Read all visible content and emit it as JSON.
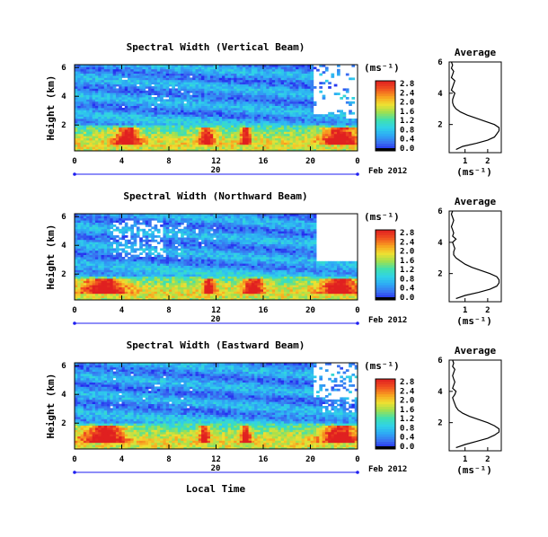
{
  "colorbar_unit": "(ms⁻¹)",
  "y_label": "Height (km)",
  "x_ticks": [
    "0",
    "4",
    "8",
    "12",
    "16",
    "20",
    "0"
  ],
  "y_ticks": [
    "6",
    "4",
    "2"
  ],
  "date_label": "Feb 2012",
  "day_label": "20",
  "x_axis_title": "Local Time",
  "average_title": "Average",
  "average_xticks": [
    "1",
    "2"
  ],
  "average_yticks": [
    "6",
    "4",
    "2"
  ],
  "average_xlabel": "(ms⁻¹)",
  "colors": {
    "scale": [
      "#000000",
      "#1e1ef0",
      "#3a6cf0",
      "#2ea8f5",
      "#30d2e8",
      "#40e0b0",
      "#a0e050",
      "#f0e030",
      "#f8a020",
      "#f05020",
      "#e02020"
    ],
    "missing": "#ffffff"
  },
  "chart_data": [
    {
      "type": "heatmap",
      "title": "Spectral Width (Vertical Beam)",
      "x_range": [
        0,
        24
      ],
      "y_range": [
        0.2,
        6.2
      ],
      "colorbar": {
        "min": 0.0,
        "max": 2.8,
        "ticks": [
          "2.8",
          "2.4",
          "2.0",
          "1.6",
          "1.2",
          "0.8",
          "0.4",
          "0.0"
        ]
      },
      "grid_desc": "Low layer (0.2-2 km) broadband widths 1.2-2.8 with red patches near 3-6 h, 10-12 h, 14-15 h and after 21 h; mid/upper layer 0.2-1.2 with missing data above 3 km after 20 h",
      "average_profile": {
        "height_km": [
          0.4,
          0.6,
          0.8,
          1.0,
          1.2,
          1.4,
          1.6,
          1.8,
          2.0,
          2.2,
          2.4,
          2.6,
          2.8,
          3.0,
          3.2,
          3.4,
          3.6,
          3.8,
          4.0,
          4.2,
          4.4,
          4.6,
          4.8,
          5.0,
          5.2,
          5.4,
          5.6,
          5.8,
          6.0
        ],
        "width": [
          0.6,
          0.9,
          1.5,
          2.0,
          2.3,
          2.4,
          2.5,
          2.5,
          2.3,
          1.9,
          1.5,
          1.1,
          0.8,
          0.6,
          0.5,
          0.45,
          0.45,
          0.5,
          0.55,
          0.4,
          0.45,
          0.5,
          0.55,
          0.4,
          0.45,
          0.5,
          0.4,
          0.45,
          0.4
        ]
      }
    },
    {
      "type": "heatmap",
      "title": "Spectral Width (Northward Beam)",
      "x_range": [
        0,
        24
      ],
      "y_range": [
        0.2,
        6.2
      ],
      "colorbar": {
        "min": 0.0,
        "max": 2.8,
        "ticks": [
          "2.8",
          "2.4",
          "2.0",
          "1.6",
          "1.2",
          "0.8",
          "0.4",
          "0.0"
        ]
      },
      "grid_desc": "Low layer up to ~1.8 km with red near 0-7 h, 11-12 h, 14-16 h and after 20 h; missing data above 3 km near 3-8 h and above 3.2 km after 20 h",
      "average_profile": {
        "height_km": [
          0.4,
          0.6,
          0.8,
          1.0,
          1.2,
          1.4,
          1.6,
          1.8,
          2.0,
          2.2,
          2.4,
          2.6,
          2.8,
          3.0,
          3.2,
          3.4,
          3.6,
          3.8,
          4.0,
          4.2,
          4.4,
          4.6,
          4.8,
          5.0,
          5.2,
          5.4,
          5.6,
          5.8,
          6.0
        ],
        "width": [
          0.6,
          1.0,
          1.6,
          2.1,
          2.4,
          2.5,
          2.5,
          2.4,
          2.1,
          1.7,
          1.3,
          1.0,
          0.8,
          0.6,
          0.5,
          0.5,
          0.55,
          0.5,
          0.45,
          0.6,
          0.45,
          0.5,
          0.45,
          0.4,
          0.45,
          0.5,
          0.45,
          0.4,
          0.45
        ]
      }
    },
    {
      "type": "heatmap",
      "title": "Spectral Width (Eastward Beam)",
      "x_range": [
        0,
        24
      ],
      "y_range": [
        0.2,
        6.2
      ],
      "colorbar": {
        "min": 0.0,
        "max": 2.8,
        "ticks": [
          "2.8",
          "2.4",
          "2.0",
          "1.6",
          "1.2",
          "0.8",
          "0.4",
          "0.0"
        ]
      },
      "grid_desc": "Low layer up to ~2 km with red near 1-7 h, 11 h, 14-15 h and after 21 h; missing data above 4 km after 20 h",
      "average_profile": {
        "height_km": [
          0.4,
          0.6,
          0.8,
          1.0,
          1.2,
          1.4,
          1.6,
          1.8,
          2.0,
          2.2,
          2.4,
          2.6,
          2.8,
          3.0,
          3.2,
          3.4,
          3.6,
          3.8,
          4.0,
          4.2,
          4.4,
          4.6,
          4.8,
          5.0,
          5.2,
          5.4,
          5.6,
          5.8,
          6.0
        ],
        "width": [
          0.6,
          1.0,
          1.5,
          2.0,
          2.3,
          2.5,
          2.5,
          2.3,
          2.0,
          1.6,
          1.2,
          0.9,
          0.7,
          0.6,
          0.55,
          0.5,
          0.45,
          0.55,
          0.6,
          0.45,
          0.5,
          0.55,
          0.5,
          0.45,
          0.5,
          0.55,
          0.45,
          0.5,
          0.45
        ]
      }
    }
  ]
}
